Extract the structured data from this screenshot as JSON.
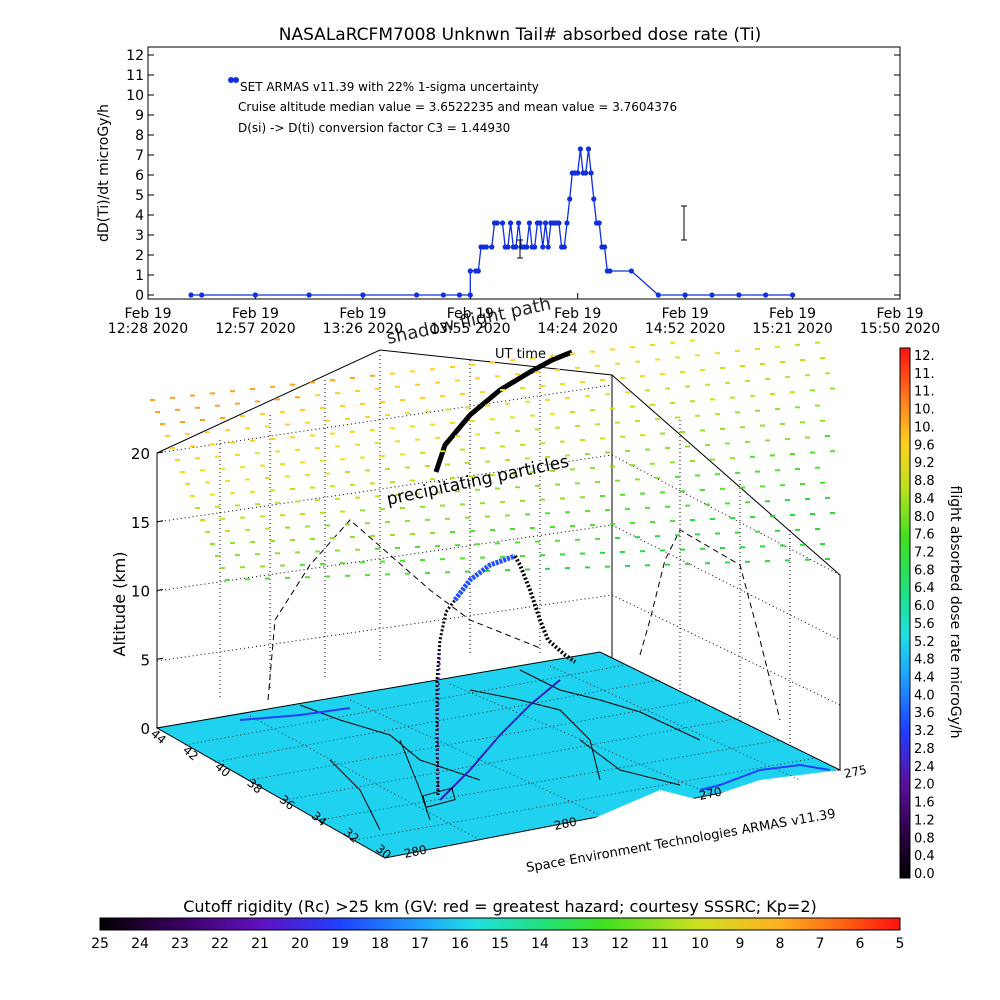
{
  "chart_data": [
    {
      "type": "line",
      "title": "NASALaRCFM7008  Unknwn Tail#  absorbed dose rate (Ti)",
      "ylabel": "dD(Ti)/dt microGy/h",
      "xlabel": "",
      "ylim": [
        0,
        12
      ],
      "yticks": [
        "0",
        "1",
        "2",
        "3",
        "4",
        "5",
        "6",
        "7",
        "8",
        "9",
        "10",
        "11",
        "12"
      ],
      "xticks": [
        {
          "date": "Feb 19",
          "time": "12:28 2020"
        },
        {
          "date": "Feb 19",
          "time": "12:57 2020"
        },
        {
          "date": "Feb 19",
          "time": "13:26 2020"
        },
        {
          "date": "Feb 19",
          "time": "13:55 2020"
        },
        {
          "date": "Feb 19",
          "time": "14:24 2020"
        },
        {
          "date": "Feb 19",
          "time": "14:52 2020"
        },
        {
          "date": "Feb 19",
          "time": "15:21 2020"
        },
        {
          "date": "Feb 19",
          "time": "15:50 2020"
        }
      ],
      "annotations": [
        "SET ARMAS v11.39 with 22% 1-sigma uncertainty",
        "Cruise altitude median value = 3.6522235 and mean value = 3.7604376",
        "D(si) -> D(ti) conversion factor C3 = 1.44930"
      ],
      "marker_color": "#1030e0",
      "series": [
        {
          "x": [
            0.08,
            0.1,
            0.2,
            0.3,
            0.4,
            0.5,
            0.55,
            0.58,
            0.6,
            0.6,
            0.61,
            0.615,
            0.62,
            0.625,
            0.63,
            0.64,
            0.645,
            0.65,
            0.66,
            0.665,
            0.67,
            0.675,
            0.68,
            0.685,
            0.69,
            0.695,
            0.7,
            0.705,
            0.71,
            0.715,
            0.72,
            0.725,
            0.73,
            0.735,
            0.74,
            0.745,
            0.75,
            0.755,
            0.76,
            0.765,
            0.77,
            0.775,
            0.78,
            0.785,
            0.79,
            0.795,
            0.8,
            0.805,
            0.81,
            0.815,
            0.82,
            0.825,
            0.83,
            0.835,
            0.84,
            0.845,
            0.85,
            0.855,
            0.86,
            0.9,
            0.95,
            1.0,
            1.05,
            1.1,
            1.15,
            1.2
          ],
          "values": [
            0,
            0,
            0,
            0,
            0,
            0,
            0,
            0,
            0,
            1.2,
            1.2,
            1.2,
            2.4,
            2.4,
            2.4,
            2.4,
            3.6,
            3.6,
            3.6,
            2.4,
            2.4,
            3.6,
            2.4,
            2.4,
            3.6,
            2.4,
            2.4,
            2.4,
            3.6,
            2.4,
            2.4,
            3.6,
            3.6,
            2.4,
            3.6,
            2.4,
            3.6,
            3.6,
            3.6,
            3.6,
            2.4,
            2.4,
            3.6,
            4.8,
            6.1,
            6.1,
            6.1,
            7.3,
            6.1,
            6.1,
            7.3,
            6.1,
            4.8,
            3.6,
            3.6,
            2.4,
            2.4,
            1.2,
            1.2,
            1.2,
            0,
            0,
            0,
            0,
            0,
            0
          ]
        }
      ]
    },
    {
      "type": "scatter",
      "title": "",
      "zlabel": "Altitude (km)",
      "zticks": [
        "0",
        "5",
        "10",
        "15",
        "20"
      ],
      "lat_ticks": [
        "44",
        "42",
        "40",
        "38",
        "36",
        "34",
        "32",
        "30"
      ],
      "lon_ticks": [
        "280",
        "280",
        "270",
        "275"
      ],
      "labels": [
        "shadow flight path",
        "UT time",
        "precipitating particles"
      ],
      "credit": "Space Environment Technologies ARMAS v11.39"
    },
    {
      "type": "heatmap",
      "colorbar_label": "flight absorbed dose rate microGy/h",
      "ticks": [
        "12.",
        "11.",
        "11.",
        "10.",
        "10.",
        "9.6",
        "9.2",
        "8.8",
        "8.4",
        "8.0",
        "7.6",
        "7.2",
        "6.8",
        "6.4",
        "6.0",
        "5.6",
        "5.2",
        "4.8",
        "4.4",
        "4.0",
        "3.6",
        "3.2",
        "2.8",
        "2.4",
        "2.0",
        "1.6",
        "1.2",
        "0.8",
        "0.4",
        "0.0"
      ]
    },
    {
      "type": "heatmap",
      "colorbar_label": "Cutoff rigidity (Rc) >25 km (GV: red = greatest hazard; courtesy SSSRC; Kp=2)",
      "ticks": [
        "25",
        "24",
        "23",
        "22",
        "21",
        "20",
        "19",
        "18",
        "17",
        "16",
        "15",
        "14",
        "13",
        "12",
        "11",
        "10",
        "9",
        "8",
        "7",
        "6",
        "5"
      ]
    }
  ]
}
